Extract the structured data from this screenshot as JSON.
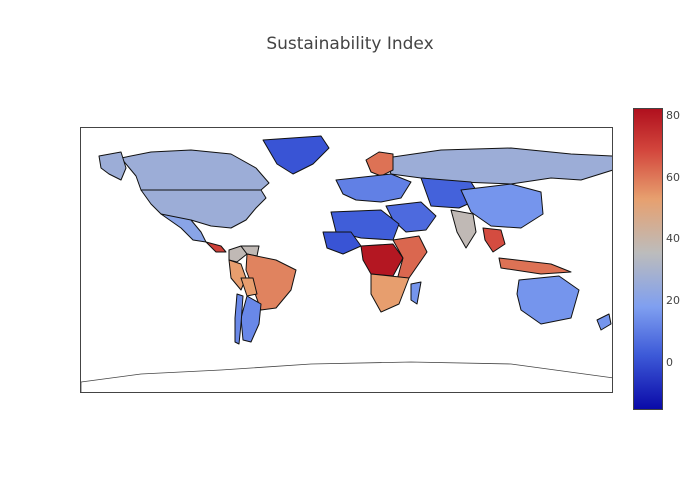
{
  "chart_data": {
    "type": "choropleth",
    "title": "Sustainability Index",
    "colorscale": {
      "name": "RdBu-like diverging (blue low, red high)",
      "range": [
        -15,
        82
      ],
      "stops": [
        "#0a0aa8",
        "#3d5ad8",
        "#7f9ff0",
        "#bcbcbc",
        "#e7a06f",
        "#d3473d",
        "#b0101e"
      ]
    },
    "colorbar": {
      "ticks": [
        "80",
        "60",
        "40",
        "20",
        "0"
      ]
    },
    "regions": [
      {
        "name": "United States",
        "value": 25
      },
      {
        "name": "Canada",
        "value": 25
      },
      {
        "name": "Alaska",
        "value": 25
      },
      {
        "name": "Greenland",
        "value": 0
      },
      {
        "name": "Mexico",
        "value": 20
      },
      {
        "name": "Central America",
        "value": 68
      },
      {
        "name": "Colombia",
        "value": 35
      },
      {
        "name": "Venezuela",
        "value": 35
      },
      {
        "name": "Brazil",
        "value": 55
      },
      {
        "name": "Peru",
        "value": 50
      },
      {
        "name": "Bolivia",
        "value": 50
      },
      {
        "name": "Argentina",
        "value": 12
      },
      {
        "name": "Chile",
        "value": 12
      },
      {
        "name": "Russia",
        "value": 25
      },
      {
        "name": "Scandinavia",
        "value": 58
      },
      {
        "name": "Europe",
        "value": 10
      },
      {
        "name": "Middle East",
        "value": 5
      },
      {
        "name": "Central Asia",
        "value": 3
      },
      {
        "name": "China",
        "value": 15
      },
      {
        "name": "India",
        "value": 35
      },
      {
        "name": "Southeast Asia",
        "value": 65
      },
      {
        "name": "Indonesia",
        "value": 58
      },
      {
        "name": "Australia",
        "value": 15
      },
      {
        "name": "New Zealand",
        "value": 15
      },
      {
        "name": "North Africa",
        "value": 2
      },
      {
        "name": "West Africa",
        "value": 0
      },
      {
        "name": "Central Africa",
        "value": 80
      },
      {
        "name": "East Africa",
        "value": 60
      },
      {
        "name": "Southern Africa",
        "value": 50
      },
      {
        "name": "Madagascar",
        "value": 15
      },
      {
        "name": "Antarctica",
        "value": null
      }
    ]
  }
}
